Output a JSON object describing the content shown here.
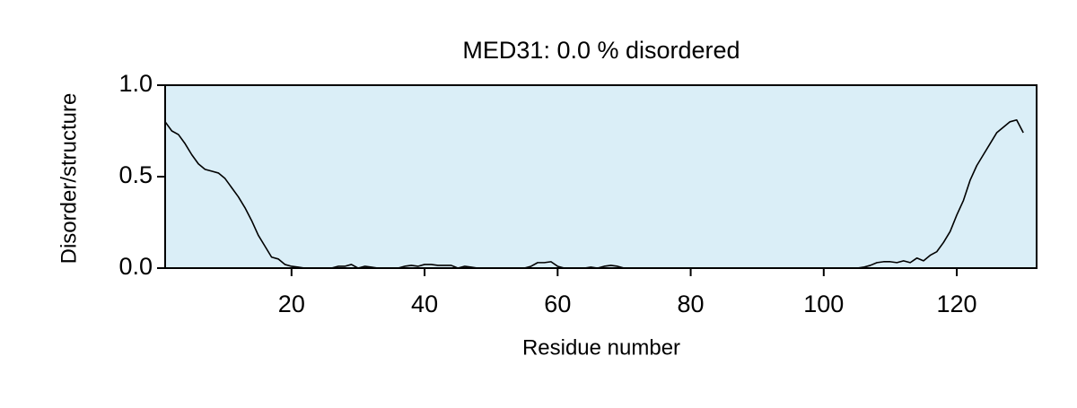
{
  "chart_data": {
    "type": "line",
    "title": "MED31: 0.0 % disordered",
    "x_label": "Residue number",
    "y_label": "Disorder/structure",
    "x": [
      1,
      2,
      3,
      4,
      5,
      6,
      7,
      8,
      9,
      10,
      11,
      12,
      13,
      14,
      15,
      16,
      17,
      18,
      19,
      20,
      21,
      22,
      23,
      24,
      25,
      26,
      27,
      28,
      29,
      30,
      31,
      32,
      33,
      34,
      35,
      36,
      37,
      38,
      39,
      40,
      41,
      42,
      43,
      44,
      45,
      46,
      47,
      48,
      49,
      50,
      51,
      52,
      53,
      54,
      55,
      56,
      57,
      58,
      59,
      60,
      61,
      62,
      63,
      64,
      65,
      66,
      67,
      68,
      69,
      70,
      71,
      72,
      73,
      74,
      75,
      76,
      77,
      78,
      79,
      80,
      81,
      82,
      83,
      84,
      85,
      86,
      87,
      88,
      89,
      90,
      91,
      92,
      93,
      94,
      95,
      96,
      97,
      98,
      99,
      100,
      101,
      102,
      103,
      104,
      105,
      106,
      107,
      108,
      109,
      110,
      111,
      112,
      113,
      114,
      115,
      116,
      117,
      118,
      119,
      120,
      121,
      122,
      123,
      124,
      125,
      126,
      127,
      128,
      129,
      130
    ],
    "series": [
      {
        "color": "#000000",
        "values": [
          0.8,
          0.75,
          0.73,
          0.68,
          0.62,
          0.57,
          0.54,
          0.53,
          0.52,
          0.49,
          0.44,
          0.39,
          0.33,
          0.26,
          0.18,
          0.12,
          0.06,
          0.05,
          0.02,
          0.01,
          0.005,
          0,
          0,
          0,
          0,
          0,
          0.01,
          0.01,
          0.02,
          0,
          0.01,
          0.005,
          0,
          0,
          0,
          0,
          0.01,
          0.015,
          0.01,
          0.02,
          0.02,
          0.015,
          0.015,
          0.015,
          0,
          0.01,
          0.005,
          0,
          0,
          0,
          0,
          0,
          0,
          0,
          0,
          0.01,
          0.03,
          0.03,
          0.035,
          0.01,
          0,
          0,
          0,
          0,
          0.005,
          0,
          0.01,
          0.015,
          0.01,
          0,
          0,
          0,
          0,
          0,
          0,
          0,
          0,
          0,
          0,
          0,
          0,
          0,
          0,
          0,
          0,
          0,
          0,
          0,
          0,
          0,
          0,
          0,
          0,
          0,
          0,
          0,
          0,
          0,
          0,
          0,
          0,
          0,
          0,
          0,
          0,
          0.005,
          0.015,
          0.03,
          0.035,
          0.035,
          0.03,
          0.04,
          0.03,
          0.055,
          0.04,
          0.07,
          0.09,
          0.14,
          0.2,
          0.29,
          0.37,
          0.48,
          0.56,
          0.62,
          0.68,
          0.74,
          0.77,
          0.8,
          0.81,
          0.74
        ]
      }
    ],
    "xlim": [
      1,
      132
    ],
    "xticks": [
      20,
      40,
      60,
      80,
      100,
      120
    ],
    "ylim": [
      0,
      1
    ],
    "yticks": [
      {
        "value": 0,
        "label": "0.0"
      },
      {
        "value": 0.5,
        "label": "0.5"
      },
      {
        "value": 1,
        "label": "1.0"
      }
    ],
    "plot_background": "#daeef7"
  }
}
